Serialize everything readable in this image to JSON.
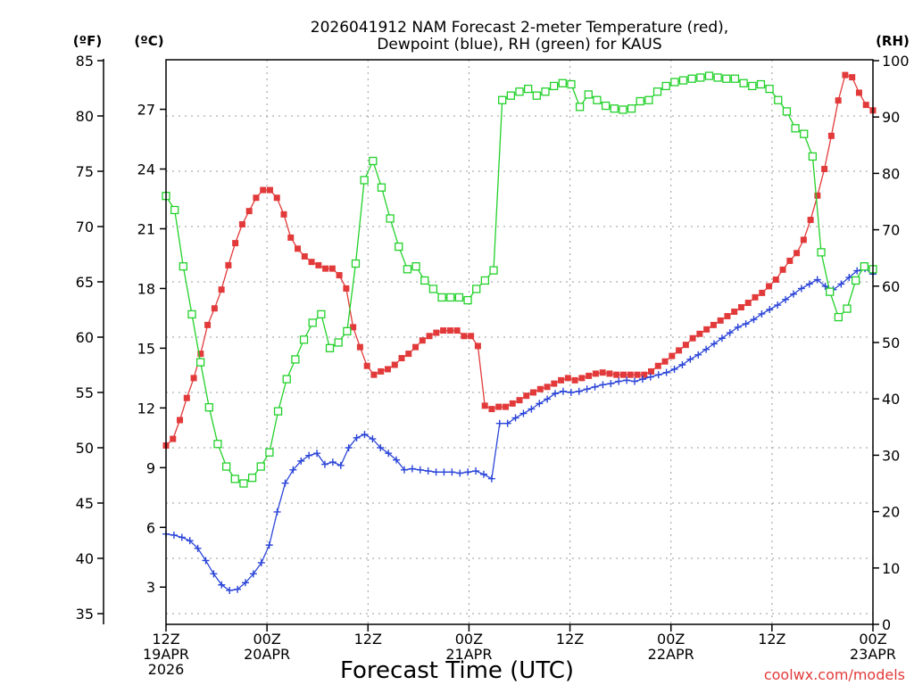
{
  "chart_data": {
    "type": "line",
    "title_line1": "2026041912 NAM Forecast 2-meter Temperature (red),",
    "title_line2": "Dewpoint (blue), RH (green) for KAUS",
    "xlabel": "Forecast Time (UTC)",
    "credit": "coolwx.com/models",
    "units": {
      "fahrenheit": "(ºF)",
      "celsius": "(ºC)",
      "rh": "(RH)"
    },
    "x_range": [
      0,
      84
    ],
    "x_ticks": [
      {
        "hour": 0,
        "lines": [
          "12Z",
          "19APR",
          "2026"
        ]
      },
      {
        "hour": 12,
        "lines": [
          "00Z",
          "20APR"
        ]
      },
      {
        "hour": 24,
        "lines": [
          "12Z",
          ""
        ]
      },
      {
        "hour": 36,
        "lines": [
          "00Z",
          "21APR"
        ]
      },
      {
        "hour": 48,
        "lines": [
          "12Z",
          ""
        ]
      },
      {
        "hour": 60,
        "lines": [
          "00Z",
          "22APR"
        ]
      },
      {
        "hour": 72,
        "lines": [
          "12Z",
          ""
        ]
      },
      {
        "hour": 84,
        "lines": [
          "00Z",
          "23APR"
        ]
      }
    ],
    "f_axis": {
      "range": [
        34,
        85
      ],
      "ticks": [
        35,
        40,
        45,
        50,
        55,
        60,
        65,
        70,
        75,
        80,
        85
      ]
    },
    "c_ticks": [
      3,
      6,
      9,
      12,
      15,
      18,
      21,
      24,
      27
    ],
    "rh_axis": {
      "range": [
        0,
        100
      ],
      "ticks": [
        0,
        10,
        20,
        30,
        40,
        50,
        60,
        70,
        80,
        90,
        100
      ]
    },
    "series": [
      {
        "name": "Temperature",
        "color": "#e23a3a",
        "marker": "filled-square",
        "unit": "F",
        "values": [
          50.2,
          50.8,
          52.5,
          54.5,
          56.3,
          58.5,
          61.1,
          62.6,
          64.3,
          66.5,
          68.5,
          70.2,
          71.4,
          72.6,
          73.3,
          73.3,
          72.6,
          71.1,
          69.0,
          68.0,
          67.3,
          66.8,
          66.5,
          66.2,
          66.2,
          65.6,
          64.4,
          60.9,
          59.1,
          57.4,
          56.6,
          56.9,
          57.1,
          57.5,
          58.1,
          58.5,
          59.1,
          59.7,
          60.1,
          60.4,
          60.6,
          60.6,
          60.6,
          60.1,
          60.1,
          59.2,
          53.8,
          53.5,
          53.7,
          53.7,
          54.0,
          54.3,
          54.7,
          55.0,
          55.3,
          55.5,
          55.8,
          56.1,
          56.3,
          56.1,
          56.3,
          56.5,
          56.7,
          56.8,
          56.7,
          56.6,
          56.6,
          56.6,
          56.6,
          56.6,
          56.9,
          57.4,
          57.8,
          58.3,
          58.8,
          59.3,
          59.9,
          60.3,
          60.7,
          61.1,
          61.5,
          61.9,
          62.3,
          62.7,
          63.1,
          63.6,
          64.0,
          64.6,
          65.2,
          66.1,
          66.9,
          67.6,
          68.8,
          70.6,
          72.8,
          75.2,
          78.2,
          81.4,
          83.7,
          83.5,
          82.1,
          81.0,
          80.5
        ]
      },
      {
        "name": "Dewpoint",
        "color": "#2b45d8",
        "marker": "plus",
        "unit": "F",
        "values": [
          42.2,
          42.1,
          41.9,
          41.6,
          40.9,
          39.8,
          38.6,
          37.6,
          37.1,
          37.2,
          37.8,
          38.6,
          39.6,
          41.2,
          44.2,
          46.8,
          48.0,
          48.8,
          49.3,
          49.5,
          48.5,
          48.7,
          48.4,
          50.0,
          50.9,
          51.2,
          50.8,
          50.0,
          49.5,
          48.9,
          48.0,
          48.1,
          48.0,
          47.9,
          47.8,
          47.8,
          47.8,
          47.7,
          47.8,
          47.9,
          47.6,
          47.2,
          52.2,
          52.2,
          52.7,
          53.1,
          53.5,
          54.0,
          54.4,
          54.9,
          55.1,
          55.0,
          55.1,
          55.3,
          55.5,
          55.7,
          55.8,
          56.0,
          56.1,
          56.0,
          56.2,
          56.4,
          56.6,
          56.8,
          57.1,
          57.5,
          58.0,
          58.4,
          58.9,
          59.4,
          59.9,
          60.4,
          60.9,
          61.2,
          61.6,
          62.1,
          62.5,
          62.9,
          63.4,
          63.9,
          64.4,
          64.8,
          65.2,
          64.6,
          64.3,
          64.8,
          65.4,
          66.0,
          66.2,
          65.7
        ]
      },
      {
        "name": "RH",
        "color": "#22d12a",
        "marker": "open-square",
        "unit": "RH",
        "values": [
          76.0,
          73.5,
          63.5,
          55.0,
          46.5,
          38.5,
          32.0,
          28.0,
          25.8,
          25.0,
          26.0,
          28.0,
          30.5,
          37.8,
          43.5,
          47.0,
          50.5,
          53.5,
          55.0,
          49.0,
          50.0,
          52.0,
          64.0,
          78.8,
          82.2,
          77.5,
          72.0,
          67.0,
          63.0,
          63.5,
          61.0,
          59.5,
          58.0,
          58.0,
          58.0,
          57.5,
          59.5,
          61.0,
          62.8,
          93.0,
          93.8,
          94.5,
          95.0,
          93.8,
          94.5,
          95.5,
          96.0,
          95.8,
          91.8,
          94.0,
          93.0,
          92.0,
          91.5,
          91.3,
          91.5,
          92.8,
          93.0,
          94.5,
          95.5,
          96.2,
          96.5,
          96.8,
          97.0,
          97.3,
          97.0,
          96.8,
          96.8,
          96.0,
          95.5,
          95.8,
          95.0,
          93.0,
          91.0,
          88.0,
          87.0,
          83.0,
          66.0,
          59.0,
          54.5,
          56.0,
          61.0,
          63.5,
          63.0
        ]
      }
    ]
  }
}
